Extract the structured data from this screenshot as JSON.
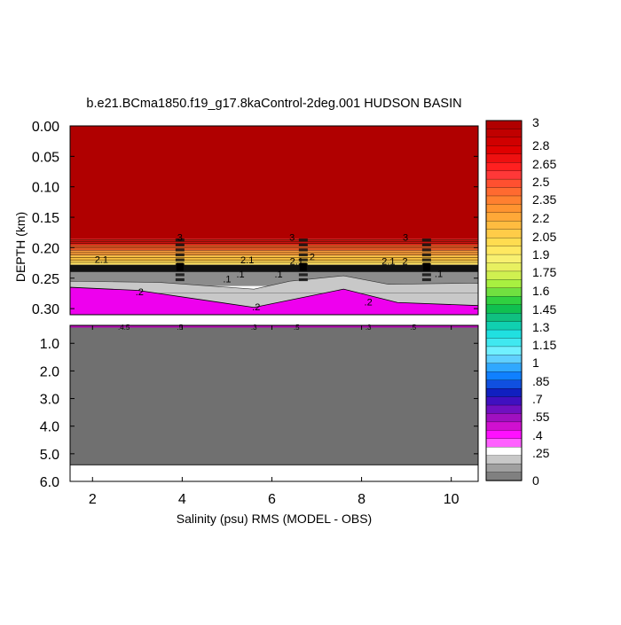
{
  "chart_data": {
    "type": "heatmap",
    "title": "b.e21.BCma1850.f19_g17.8kaControl-2deg.001 HUDSON BASIN",
    "xlabel": "Salinity (psu) RMS (MODEL - OBS)",
    "ylabel": "DEPTH (km)",
    "x_ticks": [
      "2",
      "4",
      "6",
      "8",
      "10"
    ],
    "x_tick_values": [
      2,
      4,
      6,
      8,
      10
    ],
    "xlim": [
      1.5,
      10.6
    ],
    "upper_panel": {
      "ylim": [
        0.0,
        0.31
      ],
      "y_ticks": [
        "0.00",
        "0.05",
        "0.10",
        "0.15",
        "0.20",
        "0.25",
        "0.30"
      ],
      "y_tick_values": [
        0.0,
        0.05,
        0.1,
        0.15,
        0.2,
        0.25,
        0.3
      ]
    },
    "lower_panel": {
      "ylim": [
        0.35,
        6.0
      ],
      "y_ticks": [
        "1.0",
        "2.0",
        "3.0",
        "4.0",
        "5.0",
        "6.0"
      ],
      "y_tick_values": [
        1.0,
        2.0,
        3.0,
        4.0,
        5.0,
        6.0
      ],
      "ocean_floor_depth": 5.4
    },
    "colorbar": {
      "min": 0,
      "max": 3,
      "labels": [
        "3",
        "2.8",
        "2.65",
        "2.5",
        "2.35",
        "2.2",
        "2.05",
        "1.9",
        "1.75",
        "1.6",
        "1.45",
        "1.3",
        "1.15",
        "1",
        ".85",
        ".7",
        ".55",
        ".4",
        ".25",
        "0"
      ],
      "label_values": [
        3,
        2.8,
        2.65,
        2.5,
        2.35,
        2.2,
        2.05,
        1.9,
        1.75,
        1.6,
        1.45,
        1.3,
        1.15,
        1,
        0.85,
        0.7,
        0.55,
        0.4,
        0.25,
        0
      ]
    },
    "layers": [
      {
        "value": 3.0,
        "depth_top": 0.0,
        "depth_bottom": 0.185,
        "color": "#b00000"
      },
      {
        "value": 2.8,
        "depth_top": 0.185,
        "depth_bottom": 0.195,
        "color": "#cc1010"
      },
      {
        "value": 2.6,
        "depth_top": 0.195,
        "depth_bottom": 0.205,
        "color": "#ef5a28"
      },
      {
        "value": 2.4,
        "depth_top": 0.205,
        "depth_bottom": 0.213,
        "color": "#f59a3a"
      },
      {
        "value": 2.2,
        "depth_top": 0.213,
        "depth_bottom": 0.222,
        "color": "#f8c040"
      },
      {
        "value": 2.1,
        "depth_top": 0.222,
        "depth_bottom": 0.228,
        "color": "#fde060"
      },
      {
        "value": 0.0,
        "depth_top": 0.228,
        "depth_bottom": 0.24,
        "color": "#111111"
      },
      {
        "value": 0.1,
        "depth_top": 0.24,
        "depth_bottom": 0.26,
        "color": "#8c8c8c"
      },
      {
        "value": 0.15,
        "depth_top": 0.26,
        "depth_bottom": 0.275,
        "color": "#c8c8c8"
      },
      {
        "value": 0.2,
        "depth_top": 0.275,
        "depth_bottom": 0.31,
        "color": "#ee00ee"
      }
    ],
    "bottom_interface_x": [
      1.5,
      3.0,
      5.6,
      7.6,
      8.8,
      10.6
    ],
    "bottom_interface_depth": [
      0.265,
      0.27,
      0.298,
      0.268,
      0.29,
      0.295
    ],
    "contour_labels": [
      {
        "text": "3",
        "x": 3.95,
        "y": 0.183
      },
      {
        "text": "3",
        "x": 6.45,
        "y": 0.183
      },
      {
        "text": "3",
        "x": 8.98,
        "y": 0.183
      },
      {
        "text": "2.1",
        "x": 2.2,
        "y": 0.219
      },
      {
        "text": "2.1",
        "x": 5.45,
        "y": 0.22
      },
      {
        "text": "2.1",
        "x": 6.55,
        "y": 0.222
      },
      {
        "text": "2",
        "x": 6.9,
        "y": 0.215
      },
      {
        "text": "2.1",
        "x": 8.6,
        "y": 0.222
      },
      {
        "text": "2",
        "x": 8.97,
        "y": 0.222
      },
      {
        "text": ".1",
        "x": 5.0,
        "y": 0.251
      },
      {
        "text": ".1",
        "x": 5.3,
        "y": 0.243
      },
      {
        "text": ".1",
        "x": 6.15,
        "y": 0.243
      },
      {
        "text": ".1",
        "x": 9.72,
        "y": 0.242
      },
      {
        "text": ".2",
        "x": 3.05,
        "y": 0.272
      },
      {
        "text": ".2",
        "x": 5.65,
        "y": 0.297
      },
      {
        "text": ".2",
        "x": 8.15,
        "y": 0.289
      }
    ],
    "contour_clusters": [
      3.95,
      6.7,
      9.45
    ],
    "lower_contour_labels": [
      {
        "text": ".4.5",
        "x": 2.7,
        "y": 0.4
      },
      {
        "text": ".5",
        "x": 3.95,
        "y": 0.4
      },
      {
        "text": ".3",
        "x": 5.6,
        "y": 0.4
      },
      {
        "text": ".5",
        "x": 6.55,
        "y": 0.4
      },
      {
        "text": ".3",
        "x": 8.15,
        "y": 0.4
      },
      {
        "text": ".5",
        "x": 9.15,
        "y": 0.4
      }
    ]
  }
}
